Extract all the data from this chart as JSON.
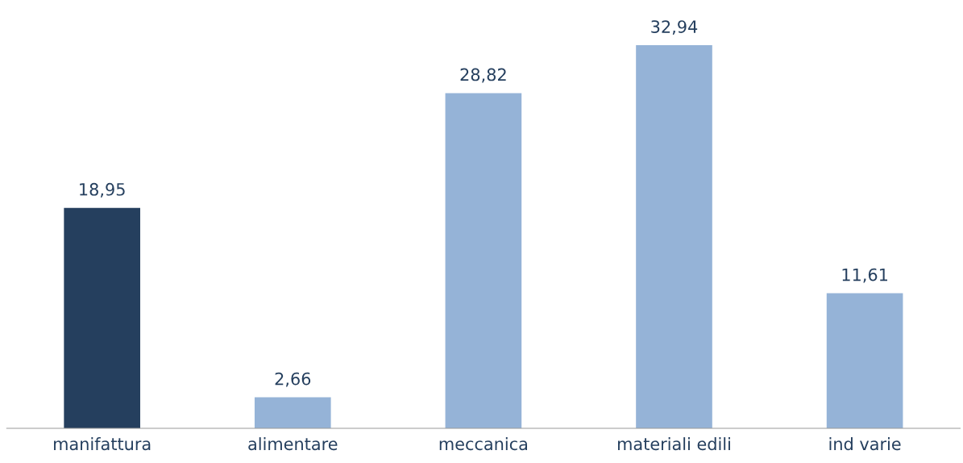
{
  "chart_data": {
    "type": "bar",
    "categories": [
      "manifattura",
      "alimentare",
      "meccanica",
      "materiali edili",
      "ind varie"
    ],
    "values": [
      18.95,
      2.66,
      28.82,
      32.94,
      11.61
    ],
    "colors": [
      "#253f5e",
      "#95b3d7",
      "#95b3d7",
      "#95b3d7",
      "#95b3d7"
    ],
    "value_labels": [
      "18,95",
      "2,66",
      "28,82",
      "32,94",
      "11,61"
    ],
    "grid": false,
    "legend": false
  }
}
